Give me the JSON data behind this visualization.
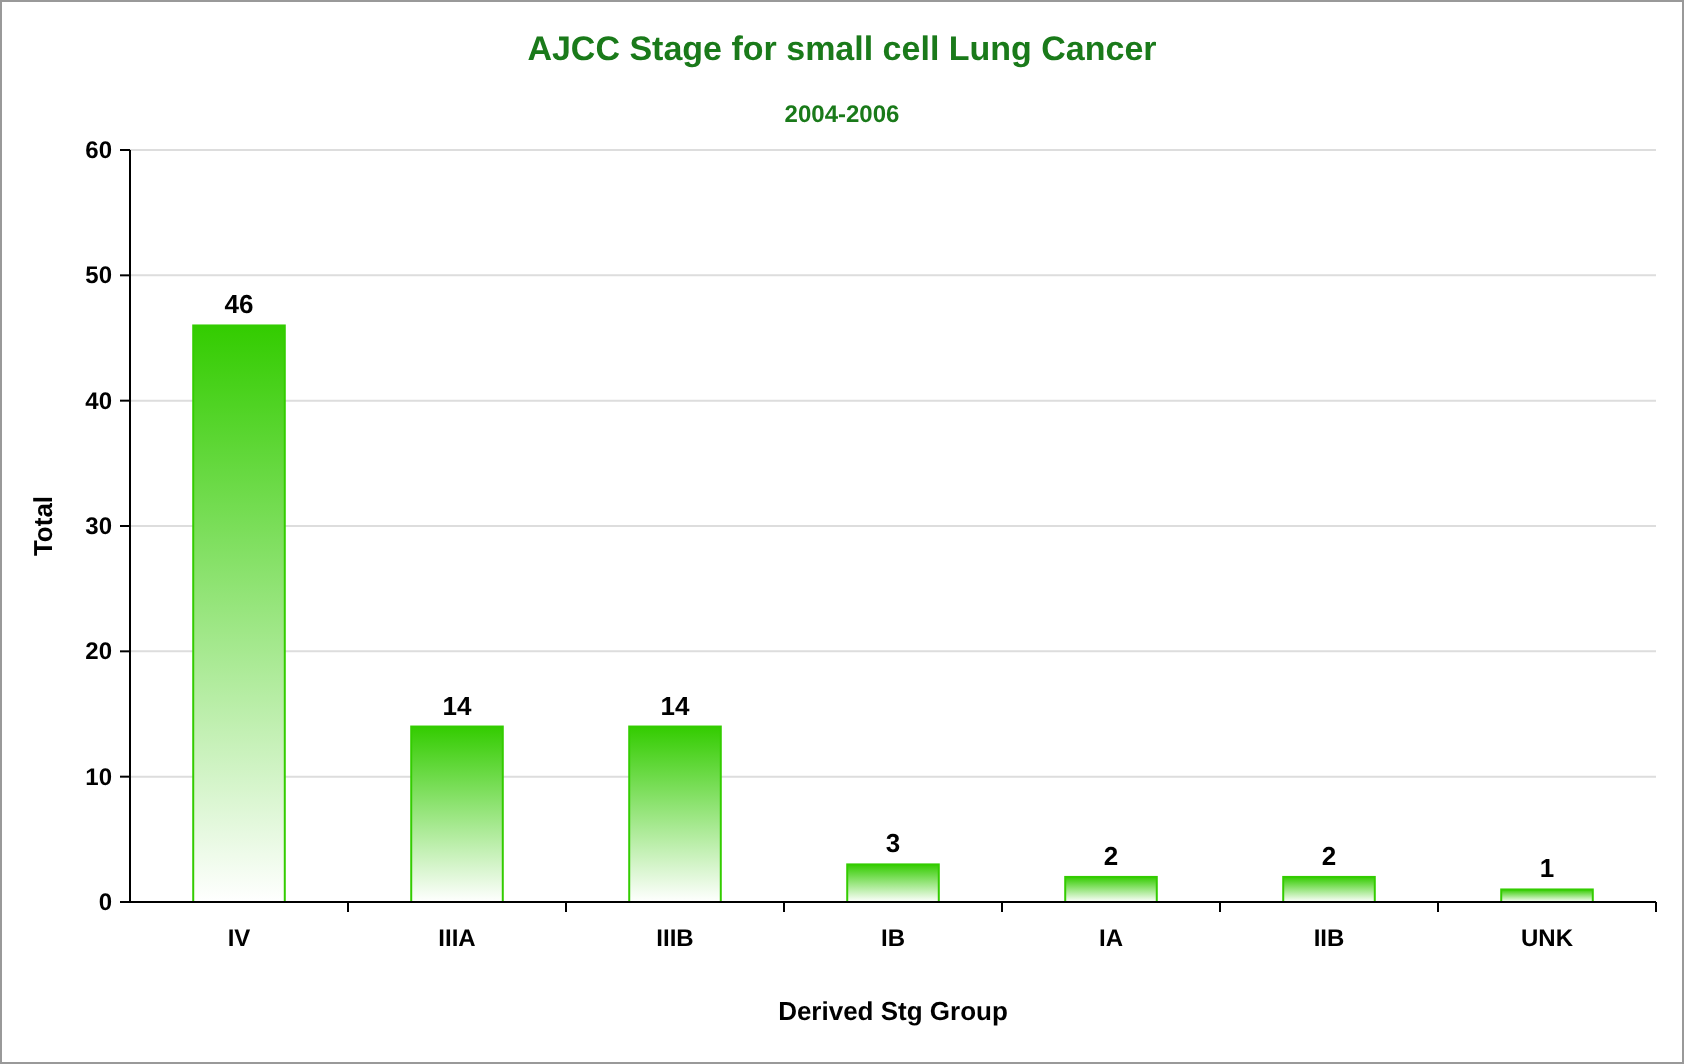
{
  "chart_data": {
    "type": "bar",
    "title": "AJCC Stage for small cell Lung Cancer",
    "subtitle": "2004-2006",
    "xlabel": "Derived Stg Group",
    "ylabel": "Total",
    "categories": [
      "IV",
      "IIIA",
      "IIIB",
      "IB",
      "IA",
      "IIB",
      "UNK"
    ],
    "values": [
      46,
      14,
      14,
      3,
      2,
      2,
      1
    ],
    "color": "#33cc00",
    "ylim": [
      0,
      60
    ],
    "yticks": [
      0,
      10,
      20,
      30,
      40,
      50,
      60
    ],
    "grid": "y",
    "data_labels": true
  }
}
